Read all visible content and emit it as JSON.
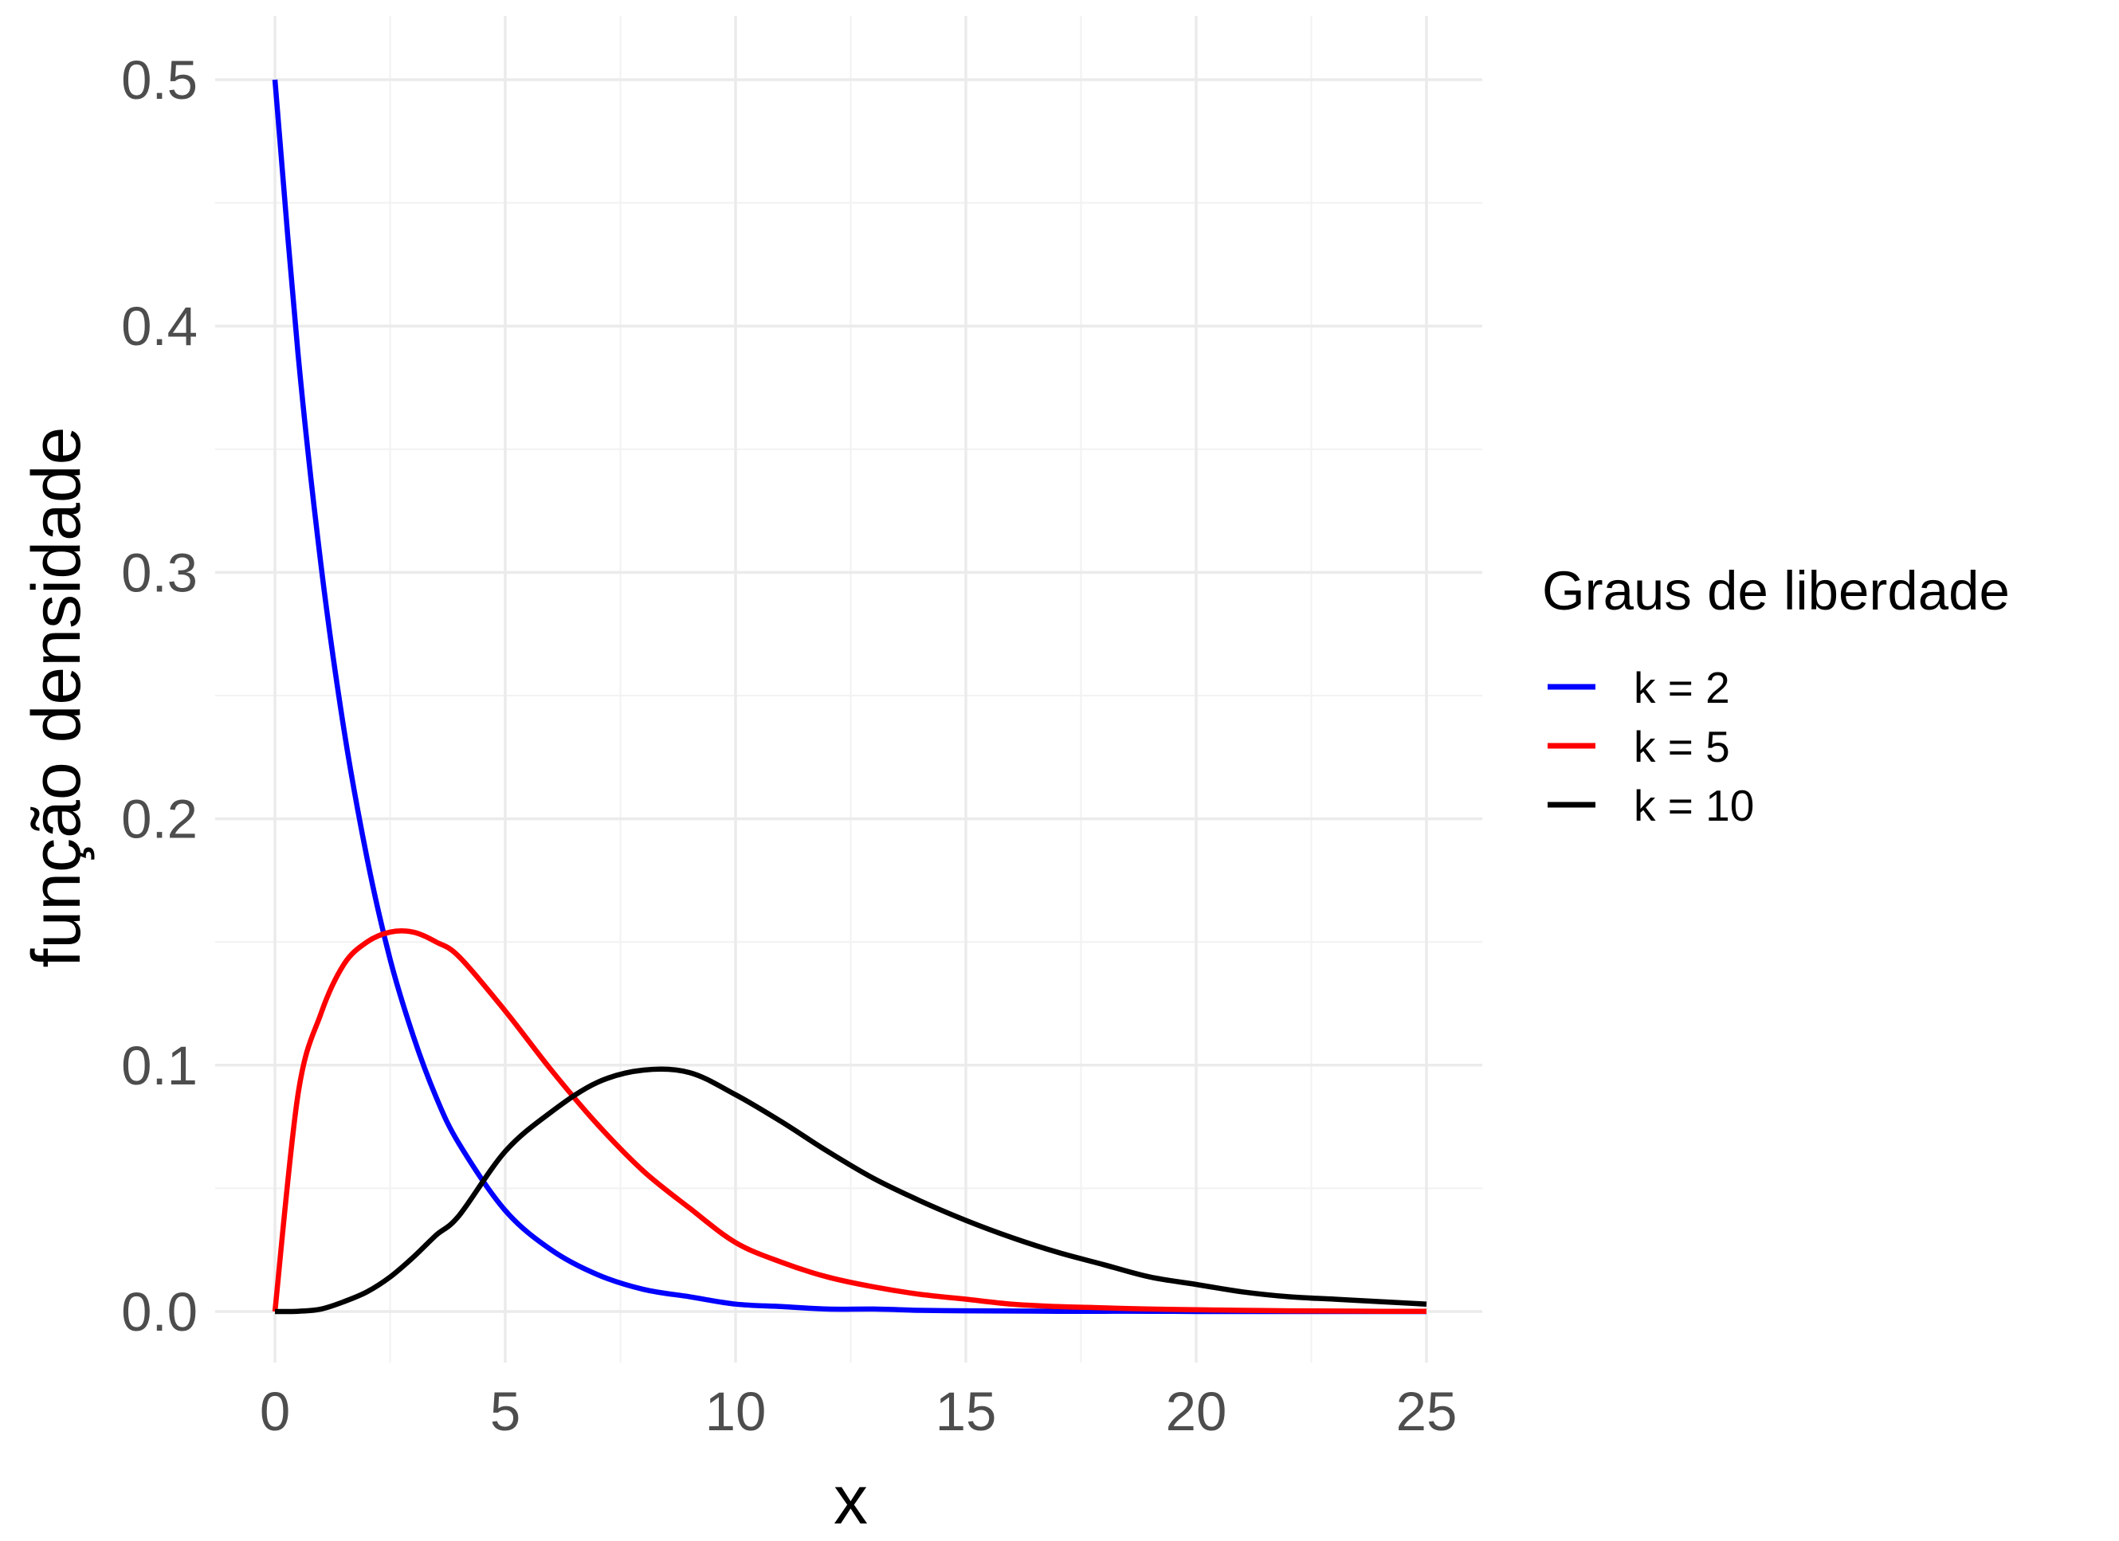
{
  "chart_data": {
    "type": "line",
    "title": "",
    "xlabel": "x",
    "ylabel": "função densidade",
    "xlim": [
      0,
      25
    ],
    "ylim": [
      0,
      0.5
    ],
    "x_ticks": [
      "0",
      "5",
      "10",
      "15",
      "20",
      "25"
    ],
    "y_ticks": [
      "0.0",
      "0.1",
      "0.2",
      "0.3",
      "0.4",
      "0.5"
    ],
    "grid": true,
    "legend": {
      "title": "Graus de liberdade",
      "position": "right",
      "entries": [
        "k = 2",
        "k = 5",
        "k = 10"
      ]
    },
    "x": [
      0,
      0.5,
      1,
      1.5,
      2,
      2.5,
      3,
      3.5,
      4,
      5,
      6,
      7,
      8,
      9,
      10,
      11,
      12,
      13,
      14,
      15,
      16,
      17,
      18,
      19,
      20,
      21,
      22,
      23,
      24,
      25
    ],
    "series": [
      {
        "name": "k = 2",
        "color": "#0000ff",
        "values": [
          0.5,
          0.389,
          0.303,
          0.236,
          0.184,
          0.143,
          0.112,
          0.087,
          0.068,
          0.041,
          0.025,
          0.015,
          0.009,
          0.006,
          0.003,
          0.002,
          0.001,
          0.001,
          0.0005,
          0.0003,
          0.0002,
          0.0001,
          0.0001,
          0.0001,
          0.0,
          0.0,
          0.0,
          0.0,
          0.0,
          0.0
        ]
      },
      {
        "name": "k = 5",
        "color": "#ff0000",
        "values": [
          0.0,
          0.088,
          0.121,
          0.141,
          0.15,
          0.154,
          0.154,
          0.15,
          0.144,
          0.122,
          0.098,
          0.076,
          0.057,
          0.042,
          0.028,
          0.02,
          0.014,
          0.01,
          0.007,
          0.005,
          0.003,
          0.002,
          0.0015,
          0.001,
          0.0007,
          0.0005,
          0.0003,
          0.0002,
          0.0001,
          0.0001
        ]
      },
      {
        "name": "k = 10",
        "color": "#000000",
        "values": [
          0.0,
          0.0001,
          0.001,
          0.004,
          0.008,
          0.014,
          0.022,
          0.031,
          0.039,
          0.065,
          0.081,
          0.093,
          0.098,
          0.097,
          0.088,
          0.077,
          0.065,
          0.054,
          0.045,
          0.037,
          0.03,
          0.024,
          0.019,
          0.014,
          0.011,
          0.008,
          0.006,
          0.005,
          0.004,
          0.003
        ]
      }
    ]
  }
}
